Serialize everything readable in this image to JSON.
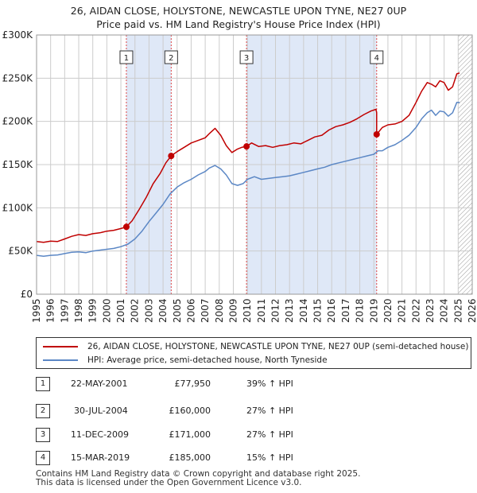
{
  "header": {
    "title": "26, AIDAN CLOSE, HOLYSTONE, NEWCASTLE UPON TYNE, NE27 0UP",
    "subtitle": "Price paid vs. HM Land Registry's House Price Index (HPI)"
  },
  "colors": {
    "property": "#c00000",
    "hpi": "#5b87c5",
    "shade": "#dfe8f7",
    "grid": "#cccccc",
    "marker_line": "#dd4444"
  },
  "legend": {
    "property_label": "26, AIDAN CLOSE, HOLYSTONE, NEWCASTLE UPON TYNE, NE27 0UP (semi-detached house)",
    "hpi_label": "HPI: Average price, semi-detached house, North Tyneside"
  },
  "chart_data": {
    "type": "line",
    "x_range": [
      1995,
      2026
    ],
    "ylim": [
      0,
      300000
    ],
    "y_ticks": [
      {
        "value": 0,
        "label": "£0"
      },
      {
        "value": 50000,
        "label": "£50K"
      },
      {
        "value": 100000,
        "label": "£100K"
      },
      {
        "value": 150000,
        "label": "£150K"
      },
      {
        "value": 200000,
        "label": "£200K"
      },
      {
        "value": 250000,
        "label": "£250K"
      },
      {
        "value": 300000,
        "label": "£300K"
      }
    ],
    "x_ticks": [
      "1995",
      "1996",
      "1997",
      "1998",
      "1999",
      "2000",
      "2001",
      "2002",
      "2003",
      "2004",
      "2005",
      "2006",
      "2007",
      "2008",
      "2009",
      "2010",
      "2011",
      "2012",
      "2013",
      "2014",
      "2015",
      "2016",
      "2017",
      "2018",
      "2019",
      "2020",
      "2021",
      "2022",
      "2023",
      "2024",
      "2025",
      "2026"
    ],
    "grid": true,
    "shaded_ranges": [
      [
        2001.39,
        2004.58
      ],
      [
        2009.94,
        2019.2
      ]
    ],
    "hatched_from": 2025.0,
    "series": [
      {
        "name": "26, AIDAN CLOSE, HOLYSTONE, NEWCASTLE UPON TYNE, NE27 0UP (semi-detached house)",
        "x": [
          1995.0,
          1995.5,
          1996.0,
          1996.5,
          1997.0,
          1997.5,
          1998.0,
          1998.5,
          1999.0,
          1999.5,
          2000.0,
          2000.5,
          2001.0,
          2001.39,
          2001.39,
          2001.8,
          2002.3,
          2002.8,
          2003.3,
          2003.8,
          2004.2,
          2004.58,
          2004.58,
          2005.0,
          2005.5,
          2006.0,
          2006.5,
          2007.0,
          2007.3,
          2007.7,
          2008.1,
          2008.5,
          2008.9,
          2009.3,
          2009.6,
          2009.94,
          2009.94,
          2010.3,
          2010.8,
          2011.3,
          2011.8,
          2012.3,
          2012.8,
          2013.3,
          2013.8,
          2014.3,
          2014.8,
          2015.3,
          2015.8,
          2016.3,
          2016.8,
          2017.3,
          2017.8,
          2018.3,
          2018.8,
          2019.15,
          2019.2,
          2019.2,
          2019.6,
          2020.0,
          2020.5,
          2021.0,
          2021.5,
          2022.0,
          2022.4,
          2022.8,
          2023.1,
          2023.4,
          2023.7,
          2024.0,
          2024.3,
          2024.6,
          2024.9,
          2025.1
        ],
        "y": [
          61000,
          60000,
          61500,
          61000,
          64000,
          67000,
          69000,
          68000,
          70000,
          71000,
          73000,
          74000,
          76000,
          77950,
          77950,
          85000,
          98000,
          112000,
          128000,
          140000,
          152000,
          160000,
          160000,
          165000,
          170000,
          175000,
          178000,
          181000,
          186000,
          192000,
          184000,
          172000,
          164000,
          168000,
          170000,
          171000,
          171000,
          175000,
          171000,
          172000,
          170000,
          172000,
          173000,
          175000,
          174000,
          178000,
          182000,
          184000,
          190000,
          194000,
          196000,
          199000,
          203000,
          208000,
          212000,
          214000,
          210000,
          185000,
          193000,
          196000,
          197000,
          200000,
          207000,
          222000,
          235000,
          245000,
          243000,
          240000,
          247000,
          245000,
          236000,
          240000,
          255000,
          256000
        ]
      },
      {
        "name": "HPI: Average price, semi-detached house, North Tyneside",
        "x": [
          1995.0,
          1995.5,
          1996.0,
          1996.5,
          1997.0,
          1997.5,
          1998.0,
          1998.5,
          1999.0,
          1999.5,
          2000.0,
          2000.5,
          2001.0,
          2001.5,
          2002.0,
          2002.5,
          2003.0,
          2003.5,
          2004.0,
          2004.5,
          2005.0,
          2005.5,
          2006.0,
          2006.5,
          2007.0,
          2007.3,
          2007.7,
          2008.1,
          2008.5,
          2008.9,
          2009.3,
          2009.7,
          2010.0,
          2010.5,
          2011.0,
          2011.5,
          2012.0,
          2012.5,
          2013.0,
          2013.5,
          2014.0,
          2014.5,
          2015.0,
          2015.5,
          2016.0,
          2016.5,
          2017.0,
          2017.5,
          2018.0,
          2018.5,
          2019.0,
          2019.3,
          2019.6,
          2020.0,
          2020.5,
          2021.0,
          2021.5,
          2022.0,
          2022.4,
          2022.8,
          2023.1,
          2023.4,
          2023.7,
          2024.0,
          2024.3,
          2024.6,
          2024.9,
          2025.1
        ],
        "y": [
          45000,
          44000,
          45000,
          45500,
          47000,
          48500,
          49000,
          48000,
          50000,
          51000,
          52000,
          53000,
          55000,
          58000,
          64000,
          73000,
          84000,
          94000,
          104000,
          116000,
          124000,
          129000,
          133000,
          138000,
          142000,
          146000,
          149000,
          145000,
          138000,
          128000,
          126000,
          128000,
          133000,
          136000,
          133000,
          134000,
          135000,
          136000,
          137000,
          139000,
          141000,
          143000,
          145000,
          147000,
          150000,
          152000,
          154000,
          156000,
          158000,
          160000,
          162000,
          166000,
          166000,
          170000,
          173000,
          178000,
          184000,
          193000,
          203000,
          210000,
          213000,
          207000,
          212000,
          211000,
          206000,
          210000,
          222000,
          222000
        ]
      }
    ],
    "markers": [
      {
        "num": "1",
        "x": 2001.39,
        "y": 77950
      },
      {
        "num": "2",
        "x": 2004.58,
        "y": 160000
      },
      {
        "num": "3",
        "x": 2009.94,
        "y": 171000
      },
      {
        "num": "4",
        "x": 2019.2,
        "y": 185000
      }
    ]
  },
  "transactions": [
    {
      "num": "1",
      "date": "22-MAY-2001",
      "price": "£77,950",
      "hpi": "39% ↑ HPI"
    },
    {
      "num": "2",
      "date": "30-JUL-2004",
      "price": "£160,000",
      "hpi": "27% ↑ HPI"
    },
    {
      "num": "3",
      "date": "11-DEC-2009",
      "price": "£171,000",
      "hpi": "27% ↑ HPI"
    },
    {
      "num": "4",
      "date": "15-MAR-2019",
      "price": "£185,000",
      "hpi": "15% ↑ HPI"
    }
  ],
  "footer": {
    "line1": "Contains HM Land Registry data © Crown copyright and database right 2025.",
    "line2": "This data is licensed under the Open Government Licence v3.0."
  }
}
